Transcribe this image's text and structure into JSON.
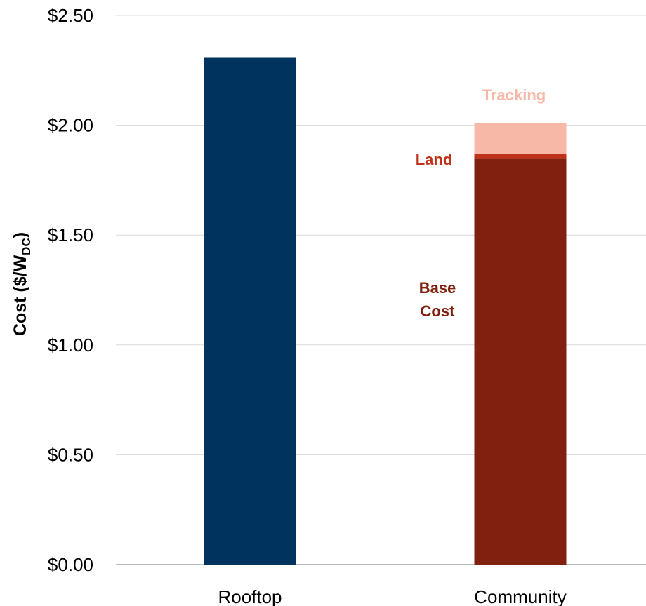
{
  "chart_data": {
    "type": "bar",
    "stacked": true,
    "categories": [
      "Rooftop",
      "Community"
    ],
    "ylabel": "Cost ($/W",
    "ylabel_subscript": "DC",
    "ylabel_close": ")",
    "ylim": [
      0,
      2.5
    ],
    "yticks": [
      0,
      0.5,
      1.0,
      1.5,
      2.0,
      2.5
    ],
    "ytick_labels": [
      "$0.00",
      "$0.50",
      "$1.00",
      "$1.50",
      "$2.00",
      "$2.50"
    ],
    "grid": true,
    "legend": "none",
    "segments": [
      {
        "category": "Rooftop",
        "value": 2.31,
        "color": "#00335e",
        "label_lines": []
      },
      {
        "category": "Community",
        "value": 1.85,
        "color": "#80200e",
        "label_lines": [
          "Base",
          "Cost"
        ],
        "label_color": "#80200e"
      },
      {
        "category": "Community",
        "value": 0.02,
        "color": "#c0321a",
        "label_lines": [
          "Land"
        ],
        "label_color": "#c0321a"
      },
      {
        "category": "Community",
        "value": 0.14,
        "color": "#f7b8a8",
        "label_lines": [
          "Tracking"
        ],
        "label_color": "#f7b8a8"
      }
    ]
  }
}
